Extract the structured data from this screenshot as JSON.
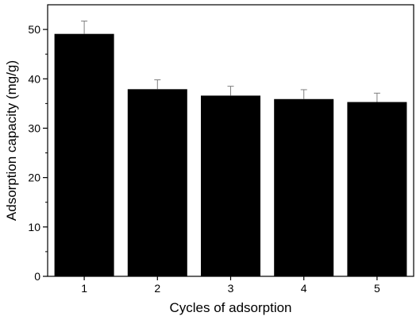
{
  "chart_data": {
    "type": "bar",
    "categories": [
      "1",
      "2",
      "3",
      "4",
      "5"
    ],
    "series": [
      {
        "values": [
          49.1,
          37.9,
          36.6,
          35.9,
          35.3
        ],
        "error": [
          2.6,
          1.9,
          1.9,
          1.9,
          1.8
        ]
      }
    ],
    "xlabel": "Cycles of adsorption",
    "ylabel": "Adsorption capacity (mg/g)",
    "ylim": [
      0,
      55
    ],
    "yticks": [
      "0",
      "10",
      "20",
      "30",
      "40",
      "50"
    ],
    "ytick_values": [
      0,
      10,
      20,
      30,
      40,
      50
    ],
    "yminor_values": [
      5,
      15,
      25,
      35,
      45
    ],
    "grid": false,
    "bar_color": "#000000",
    "errorbar_color": "#7f7f7f"
  }
}
